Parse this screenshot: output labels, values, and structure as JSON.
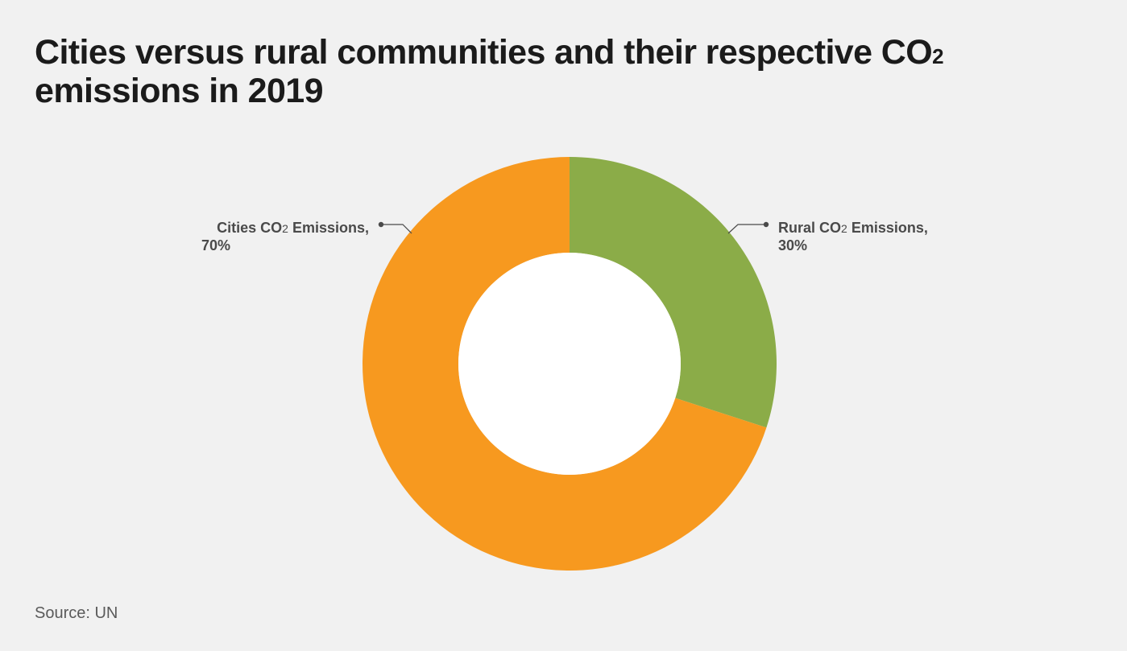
{
  "colors": {
    "background": "#f1f1f1",
    "title": "#1b1b1b",
    "label": "#4a4a4a",
    "source": "#5a5a5a",
    "hole": "#ffffff"
  },
  "chart_data": {
    "type": "pie",
    "variant": "donut",
    "title_main": "Cities versus rural communities and their respective CO",
    "title_sub": "2",
    "title_line2": "emissions in 2019",
    "slices": [
      {
        "name_main": "Rural CO",
        "name_sub": "2",
        "name_tail": " Emissions,",
        "value": 30,
        "value_label": "30%",
        "color": "#8bac48"
      },
      {
        "name_main": "Cities CO",
        "name_sub": "2",
        "name_tail": " Emissions,",
        "value": 70,
        "value_label": "70%",
        "color": "#f7991f"
      }
    ],
    "start_angle_deg": 0,
    "direction": "clockwise",
    "source": "Source: UN"
  }
}
